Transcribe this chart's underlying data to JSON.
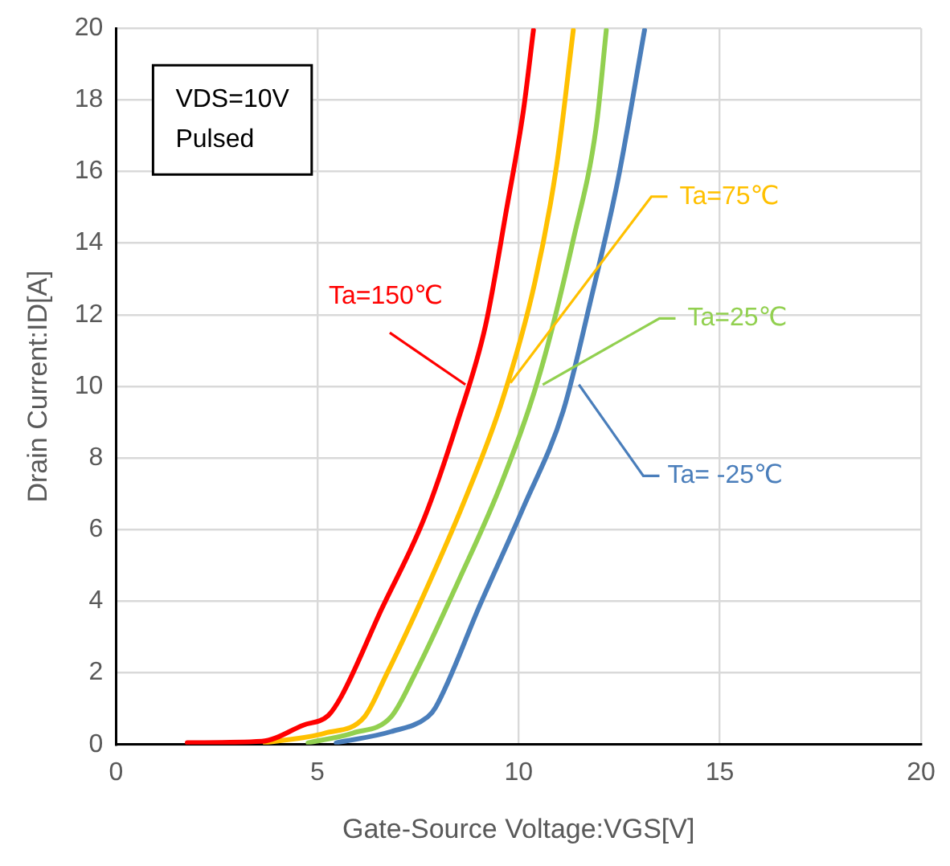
{
  "chart_data": {
    "type": "line",
    "xlabel": "Gate-Source Voltage:VGS[V]",
    "ylabel": "Drain Current:ID[A]",
    "annotations": [
      "VDS=10V",
      "Pulsed"
    ],
    "xlim": [
      0,
      20
    ],
    "xticks": [
      0,
      5,
      10,
      15,
      20
    ],
    "ylim": [
      0,
      20
    ],
    "yticks": [
      0,
      2,
      4,
      6,
      8,
      10,
      12,
      14,
      16,
      18,
      20
    ],
    "grid": true,
    "legend": false,
    "marker": "none",
    "line_style": "solid",
    "series": [
      {
        "name": "Ta=150℃",
        "color": "#ff0000",
        "x": [
          1.77,
          3.62,
          4.65,
          5.27,
          5.6,
          6.58,
          7.65,
          8.48,
          9.18,
          9.71,
          10.12,
          10.37
        ],
        "values": [
          0.05,
          0.09,
          0.54,
          0.81,
          1.35,
          3.74,
          6.3,
          9.0,
          11.7,
          15.0,
          17.7,
          19.95
        ]
      },
      {
        "name": "Ta=75℃",
        "color": "#ffc000",
        "x": [
          3.7,
          5.19,
          6.17,
          6.71,
          7.65,
          8.64,
          9.59,
          10.41,
          10.95,
          11.36
        ],
        "values": [
          0.05,
          0.32,
          0.77,
          1.94,
          4.19,
          6.76,
          9.59,
          12.93,
          16.2,
          19.95
        ]
      },
      {
        "name": "Ta=25℃",
        "color": "#92d050",
        "x": [
          4.77,
          5.88,
          6.83,
          7.41,
          8.48,
          9.59,
          10.53,
          11.36,
          11.93,
          12.18
        ],
        "values": [
          0.05,
          0.32,
          0.77,
          1.94,
          4.5,
          7.34,
          10.36,
          14.1,
          17.25,
          19.95
        ]
      },
      {
        "name": "Ta= -25℃",
        "color": "#4a7ebb",
        "x": [
          5.47,
          6.83,
          7.74,
          7.94,
          9.05,
          10.12,
          11.11,
          11.77,
          12.47,
          13.13
        ],
        "values": [
          0.05,
          0.36,
          0.77,
          1.04,
          3.92,
          6.62,
          9.32,
          12.3,
          15.77,
          19.95
        ]
      }
    ]
  }
}
